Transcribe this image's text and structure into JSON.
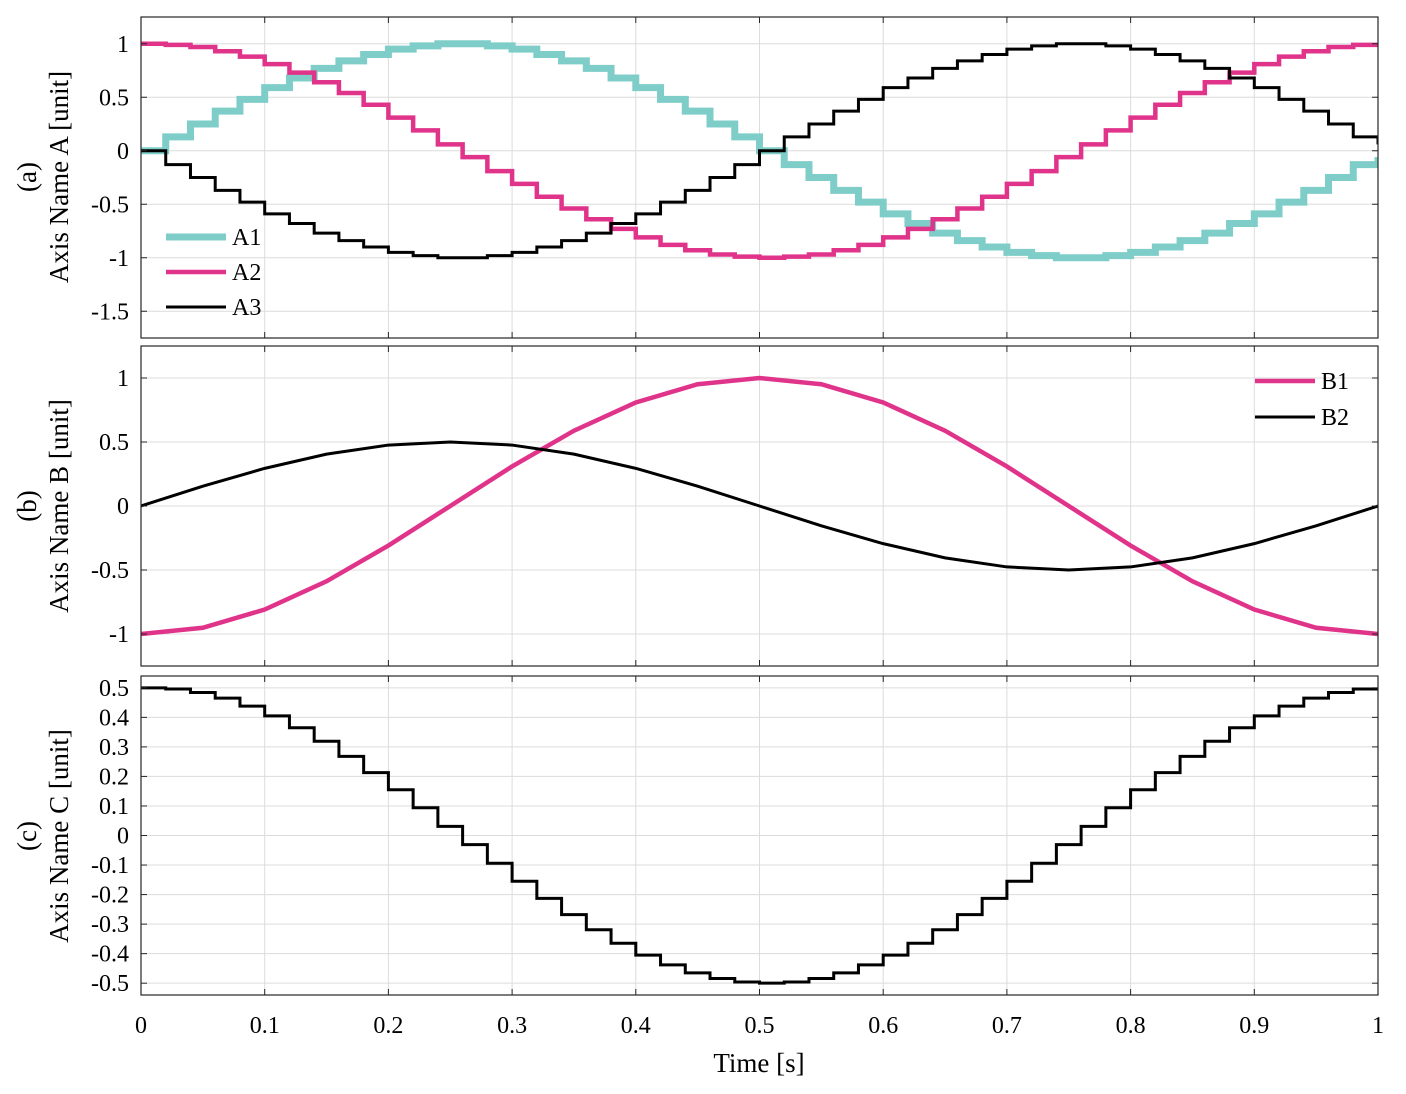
{
  "chart_data": [
    {
      "type": "line",
      "panel_label": "(a)",
      "ylabel": "Axis Name A [unit]",
      "xlim": [
        0,
        1
      ],
      "ylim": [
        -1.75,
        1.25
      ],
      "yticks": [
        1,
        0.5,
        0,
        -0.5,
        -1,
        -1.5
      ],
      "ytick_labels": [
        "1",
        "0.5",
        "0",
        "-0.5",
        "-1",
        "-1.5"
      ],
      "grid": true,
      "legend_position": "lower-left",
      "step": true,
      "sample_period": 0.02,
      "x": [
        0,
        0.02,
        0.04,
        0.06,
        0.08,
        0.1,
        0.12,
        0.14,
        0.16,
        0.18,
        0.2,
        0.22,
        0.24,
        0.26,
        0.28,
        0.3,
        0.32,
        0.34,
        0.36,
        0.38,
        0.4,
        0.42,
        0.44,
        0.46,
        0.48,
        0.5,
        0.52,
        0.54,
        0.56,
        0.58,
        0.6,
        0.62,
        0.64,
        0.66,
        0.68,
        0.7,
        0.72,
        0.74,
        0.76,
        0.78,
        0.8,
        0.82,
        0.84,
        0.86,
        0.88,
        0.9,
        0.92,
        0.94,
        0.96,
        0.98,
        1
      ],
      "series": [
        {
          "name": "A1",
          "color": "#7ecdc8",
          "values": [
            0,
            0.13,
            0.25,
            0.37,
            0.48,
            0.59,
            0.68,
            0.77,
            0.84,
            0.9,
            0.95,
            0.98,
            1.0,
            1.0,
            0.98,
            0.95,
            0.9,
            0.84,
            0.77,
            0.68,
            0.59,
            0.48,
            0.37,
            0.25,
            0.13,
            0,
            -0.13,
            -0.25,
            -0.37,
            -0.48,
            -0.59,
            -0.68,
            -0.77,
            -0.84,
            -0.9,
            -0.95,
            -0.98,
            -1.0,
            -1.0,
            -0.98,
            -0.95,
            -0.9,
            -0.84,
            -0.77,
            -0.68,
            -0.59,
            -0.48,
            -0.37,
            -0.25,
            -0.13,
            -0.06
          ]
        },
        {
          "name": "A2",
          "color": "#e0338a",
          "values": [
            1.0,
            0.99,
            0.97,
            0.93,
            0.88,
            0.81,
            0.73,
            0.64,
            0.54,
            0.43,
            0.31,
            0.19,
            0.06,
            -0.06,
            -0.19,
            -0.31,
            -0.43,
            -0.54,
            -0.64,
            -0.73,
            -0.81,
            -0.88,
            -0.93,
            -0.97,
            -0.99,
            -1.0,
            -0.99,
            -0.97,
            -0.93,
            -0.88,
            -0.81,
            -0.73,
            -0.64,
            -0.54,
            -0.43,
            -0.31,
            -0.19,
            -0.06,
            0.06,
            0.19,
            0.31,
            0.43,
            0.54,
            0.64,
            0.73,
            0.81,
            0.88,
            0.93,
            0.97,
            0.99,
            1.0
          ]
        },
        {
          "name": "A3",
          "color": "#000000",
          "values": [
            0,
            -0.13,
            -0.25,
            -0.37,
            -0.48,
            -0.59,
            -0.68,
            -0.77,
            -0.84,
            -0.9,
            -0.95,
            -0.98,
            -1.0,
            -1.0,
            -0.98,
            -0.95,
            -0.9,
            -0.84,
            -0.77,
            -0.68,
            -0.59,
            -0.48,
            -0.37,
            -0.25,
            -0.13,
            0,
            0.13,
            0.25,
            0.37,
            0.48,
            0.59,
            0.68,
            0.77,
            0.84,
            0.9,
            0.95,
            0.98,
            1.0,
            1.0,
            0.98,
            0.95,
            0.9,
            0.84,
            0.77,
            0.68,
            0.59,
            0.48,
            0.37,
            0.25,
            0.13,
            0.06
          ]
        }
      ]
    },
    {
      "type": "line",
      "panel_label": "(b)",
      "ylabel": "Axis Name B [unit]",
      "xlim": [
        0,
        1
      ],
      "ylim": [
        -1.25,
        1.25
      ],
      "yticks": [
        1,
        0.5,
        0,
        -0.5,
        -1
      ],
      "ytick_labels": [
        "1",
        "0.5",
        "0",
        "-0.5",
        "-1"
      ],
      "grid": true,
      "legend_position": "top-right",
      "step": false,
      "x": [
        0,
        0.05,
        0.1,
        0.15,
        0.2,
        0.25,
        0.3,
        0.35,
        0.4,
        0.45,
        0.5,
        0.55,
        0.6,
        0.65,
        0.7,
        0.75,
        0.8,
        0.85,
        0.9,
        0.95,
        1
      ],
      "series": [
        {
          "name": "B1",
          "color": "#e0338a",
          "values": [
            -1.0,
            -0.951,
            -0.809,
            -0.588,
            -0.309,
            0,
            0.309,
            0.588,
            0.809,
            0.951,
            1.0,
            0.951,
            0.809,
            0.588,
            0.309,
            0,
            -0.309,
            -0.588,
            -0.809,
            -0.951,
            -1.0
          ]
        },
        {
          "name": "B2",
          "color": "#000000",
          "values": [
            0,
            0.155,
            0.294,
            0.405,
            0.476,
            0.5,
            0.476,
            0.405,
            0.294,
            0.155,
            0,
            -0.155,
            -0.294,
            -0.405,
            -0.476,
            -0.5,
            -0.476,
            -0.405,
            -0.294,
            -0.155,
            0
          ]
        }
      ]
    },
    {
      "type": "line",
      "panel_label": "(c)",
      "ylabel": "Axis Name C [unit]",
      "xlabel": "Time [s]",
      "xlim": [
        0,
        1
      ],
      "ylim": [
        -0.54,
        0.54
      ],
      "xticks": [
        0,
        0.1,
        0.2,
        0.3,
        0.4,
        0.5,
        0.6,
        0.7,
        0.8,
        0.9,
        1
      ],
      "xtick_labels": [
        "0",
        "0.1",
        "0.2",
        "0.3",
        "0.4",
        "0.5",
        "0.6",
        "0.7",
        "0.8",
        "0.9",
        "1"
      ],
      "yticks": [
        0.5,
        0.4,
        0.3,
        0.2,
        0.1,
        0,
        -0.1,
        -0.2,
        -0.3,
        -0.4,
        -0.5
      ],
      "ytick_labels": [
        "0.5",
        "0.4",
        "0.3",
        "0.2",
        "0.1",
        "0",
        "-0.1",
        "-0.2",
        "-0.3",
        "-0.4",
        "-0.5"
      ],
      "grid": true,
      "step": true,
      "sample_period": 0.02,
      "x": [
        0,
        0.02,
        0.04,
        0.06,
        0.08,
        0.1,
        0.12,
        0.14,
        0.16,
        0.18,
        0.2,
        0.22,
        0.24,
        0.26,
        0.28,
        0.3,
        0.32,
        0.34,
        0.36,
        0.38,
        0.4,
        0.42,
        0.44,
        0.46,
        0.48,
        0.5,
        0.52,
        0.54,
        0.56,
        0.58,
        0.6,
        0.62,
        0.64,
        0.66,
        0.68,
        0.7,
        0.72,
        0.74,
        0.76,
        0.78,
        0.8,
        0.82,
        0.84,
        0.86,
        0.88,
        0.9,
        0.92,
        0.94,
        0.96,
        0.98,
        1
      ],
      "series": [
        {
          "color": "#000000",
          "values": [
            0.5,
            0.496,
            0.484,
            0.465,
            0.438,
            0.405,
            0.365,
            0.319,
            0.268,
            0.213,
            0.155,
            0.094,
            0.031,
            -0.031,
            -0.094,
            -0.155,
            -0.213,
            -0.268,
            -0.319,
            -0.365,
            -0.405,
            -0.438,
            -0.465,
            -0.484,
            -0.496,
            -0.5,
            -0.496,
            -0.484,
            -0.465,
            -0.438,
            -0.405,
            -0.365,
            -0.319,
            -0.268,
            -0.213,
            -0.155,
            -0.094,
            -0.031,
            0.031,
            0.094,
            0.155,
            0.213,
            0.268,
            0.319,
            0.365,
            0.405,
            0.438,
            0.465,
            0.484,
            0.496,
            0.5
          ]
        }
      ]
    }
  ]
}
